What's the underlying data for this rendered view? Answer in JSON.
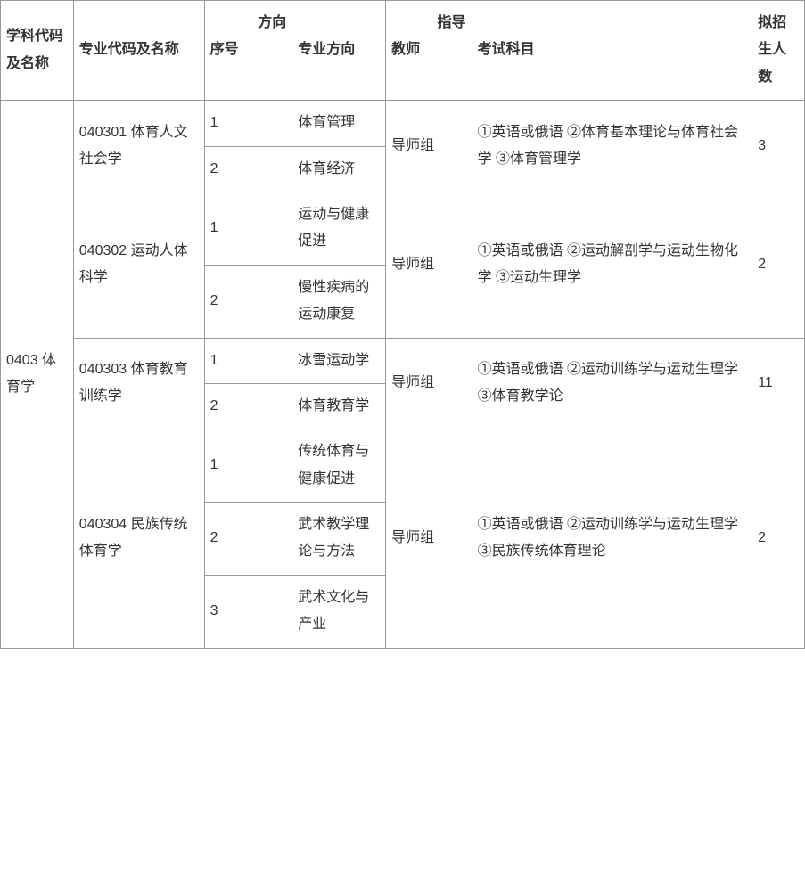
{
  "headers": {
    "discipline": "学科代码及名称",
    "major": "专业代码及名称",
    "seq_top": "方向",
    "seq_bottom": "序号",
    "direction": "专业方向",
    "advisor_top": "指导",
    "advisor_bottom": "教师",
    "exam": "考试科目",
    "enroll": "拟招生人数"
  },
  "discipline": "0403 体育学",
  "majors": [
    {
      "name": "040301 体育人文社会学",
      "advisor": "导师组",
      "exam": "①英语或俄语 ②体育基本理论与体育社会学 ③体育管理学",
      "enroll": "3",
      "directions": [
        {
          "seq": "1",
          "name": "体育管理"
        },
        {
          "seq": "2",
          "name": "体育经济"
        }
      ]
    },
    {
      "name": "040302 运动人体科学",
      "advisor": "导师组",
      "exam": "①英语或俄语 ②运动解剖学与运动生物化学 ③运动生理学",
      "enroll": "2",
      "directions": [
        {
          "seq": "1",
          "name": "运动与健康促进"
        },
        {
          "seq": "2",
          "name": "慢性疾病的运动康复"
        }
      ]
    },
    {
      "name": "040303 体育教育训练学",
      "advisor": "导师组",
      "exam": "①英语或俄语 ②运动训练学与运动生理学 ③体育教学论",
      "enroll": "11",
      "directions": [
        {
          "seq": "1",
          "name": "冰雪运动学"
        },
        {
          "seq": "2",
          "name": "体育教育学"
        }
      ]
    },
    {
      "name": "040304 民族传统体育学",
      "advisor": "导师组",
      "exam": "①英语或俄语 ②运动训练学与运动生理学 ③民族传统体育理论",
      "enroll": "2",
      "directions": [
        {
          "seq": "1",
          "name": "传统体育与健康促进"
        },
        {
          "seq": "2",
          "name": "武术教学理论与方法"
        },
        {
          "seq": "3",
          "name": "武术文化与产业"
        }
      ]
    }
  ]
}
